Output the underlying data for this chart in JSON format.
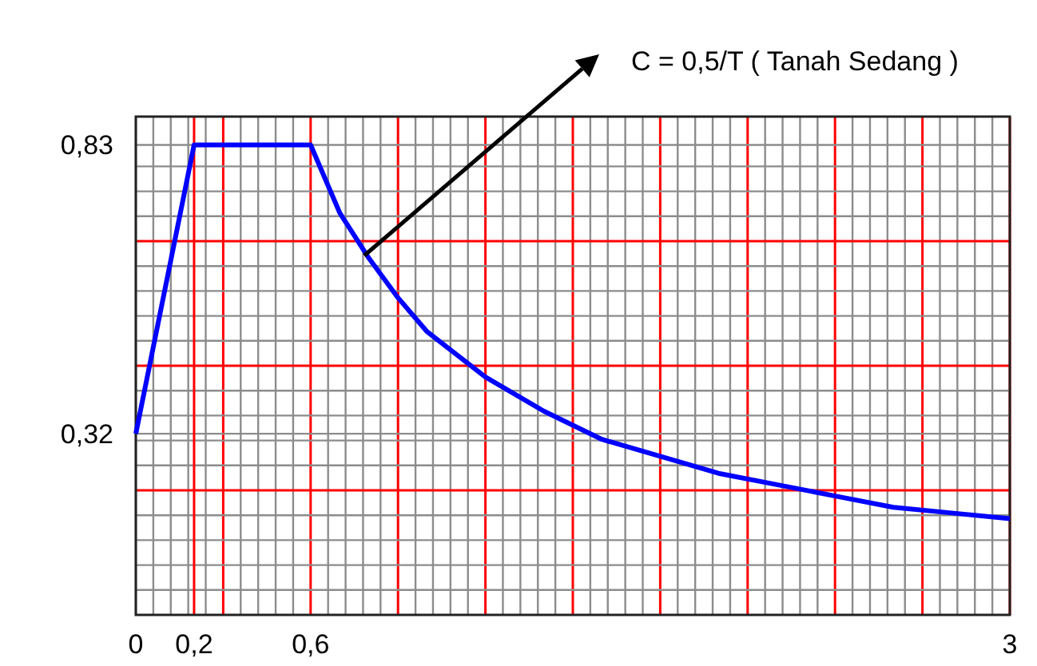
{
  "chart_data": {
    "type": "line",
    "x": [
      0,
      0.2,
      0.6,
      0.7,
      0.8,
      0.9,
      1.0,
      1.2,
      1.4,
      1.6,
      1.8,
      2.0,
      2.2,
      2.4,
      2.6,
      2.8,
      3.0
    ],
    "series": [
      {
        "color": "#0000ff",
        "values": [
          0.32,
          0.83,
          0.83,
          0.71,
          0.63,
          0.56,
          0.5,
          0.42,
          0.36,
          0.31,
          0.28,
          0.25,
          0.23,
          0.21,
          0.19,
          0.18,
          0.17
        ]
      }
    ],
    "xlim": [
      0,
      3
    ],
    "xticks": [
      0,
      {
        "value": 0.06,
        "label": null
      },
      {
        "value": 0.12,
        "label": null
      },
      {
        "value": 0.18,
        "label": null
      },
      {
        "value": 0.24,
        "label": null
      },
      {
        "value": 0.3,
        "label": null
      },
      {
        "value": 0.36,
        "label": null
      },
      {
        "value": 0.42,
        "label": null
      },
      {
        "value": 0.48,
        "label": null
      },
      {
        "value": 0.54,
        "label": null
      },
      {
        "value": 0.6,
        "label": "0,6"
      },
      {
        "value": 0.66,
        "label": null
      },
      {
        "value": 0.72,
        "label": null
      },
      {
        "value": 0.78,
        "label": null
      },
      {
        "value": 0.84,
        "label": null
      },
      {
        "value": 0.9,
        "label": null
      },
      {
        "value": 0.96,
        "label": null
      },
      {
        "value": 1.02,
        "label": null
      },
      {
        "value": 1.08,
        "label": null
      },
      {
        "value": 1.14,
        "label": null
      },
      {
        "value": 1.2,
        "label": null
      },
      {
        "value": 1.26,
        "label": null
      },
      {
        "value": 1.32,
        "label": null
      },
      {
        "value": 1.38,
        "label": null
      },
      {
        "value": 1.44,
        "label": null
      },
      {
        "value": 1.5,
        "label": null
      },
      {
        "value": 1.56,
        "label": null
      },
      {
        "value": 1.62,
        "label": null
      },
      {
        "value": 1.68,
        "label": null
      },
      {
        "value": 1.74,
        "label": null
      },
      {
        "value": 1.8,
        "label": null
      },
      {
        "value": 1.86,
        "label": null
      },
      {
        "value": 1.92,
        "label": null
      },
      {
        "value": 1.98,
        "label": null
      },
      {
        "value": 2.04,
        "label": null
      },
      {
        "value": 2.1,
        "label": null
      },
      {
        "value": 2.16,
        "label": null
      },
      {
        "value": 2.22,
        "label": null
      },
      {
        "value": 2.28,
        "label": null
      },
      {
        "value": 2.34,
        "label": null
      },
      {
        "value": 2.4,
        "label": null
      },
      {
        "value": 2.46,
        "label": null
      },
      {
        "value": 2.52,
        "label": null
      },
      {
        "value": 2.58,
        "label": null
      },
      {
        "value": 2.64,
        "label": null
      },
      {
        "value": 2.7,
        "label": null
      },
      {
        "value": 2.76,
        "label": null
      },
      {
        "value": 2.82,
        "label": null
      },
      {
        "value": 2.88,
        "label": null
      },
      {
        "value": 2.94,
        "label": null
      },
      3
    ],
    "ylim": [
      0,
      0.88
    ],
    "yticks": [
      {
        "value": 0.044,
        "label": null
      },
      {
        "value": 0.088,
        "label": null
      },
      {
        "value": 0.132,
        "label": null
      },
      {
        "value": 0.176,
        "label": null
      },
      {
        "value": 0.22,
        "label": null
      },
      {
        "value": 0.264,
        "label": null
      },
      {
        "value": 0.308,
        "label": null
      },
      {
        "value": 0.32,
        "label": "0,32"
      },
      {
        "value": 0.352,
        "label": null
      },
      {
        "value": 0.396,
        "label": null
      },
      {
        "value": 0.44,
        "label": null
      },
      {
        "value": 0.484,
        "label": null
      },
      {
        "value": 0.528,
        "label": null
      },
      {
        "value": 0.572,
        "label": null
      },
      {
        "value": 0.616,
        "label": null
      },
      {
        "value": 0.66,
        "label": null
      },
      {
        "value": 0.704,
        "label": null
      },
      {
        "value": 0.748,
        "label": null
      },
      {
        "value": 0.792,
        "label": null
      },
      {
        "value": 0.83,
        "label": "0,83"
      }
    ],
    "grid": true,
    "ref_lines": [
      {
        "axis": "x",
        "value": 0.2,
        "label": "0,2",
        "color": "#ff0000"
      }
    ],
    "annotations": [
      "C = 0,5/T ( Tanah Sedang )"
    ]
  }
}
